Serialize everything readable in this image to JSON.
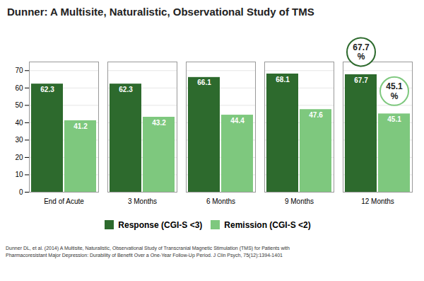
{
  "chart_data": {
    "type": "bar",
    "title": "Dunner: A Multisite, Naturalistic, Observational Study of TMS",
    "categories": [
      "End of Acute",
      "3 Months",
      "6 Months",
      "9 Months",
      "12 Months"
    ],
    "series": [
      {
        "name": "Response (CGI-S <3)",
        "color": "#2d6a2d",
        "values": [
          62.3,
          62.3,
          66.1,
          68.1,
          67.7
        ]
      },
      {
        "name": "Remission (CGI-S <2)",
        "color": "#7ec87e",
        "values": [
          41.2,
          43.2,
          44.4,
          47.6,
          45.1
        ]
      }
    ],
    "ylim": [
      0,
      75
    ],
    "yticks": [
      0,
      10,
      20,
      30,
      40,
      50,
      60,
      70
    ],
    "grid": true,
    "legend": "bottom",
    "data_labels": true,
    "annotations": [
      {
        "text": "67.7\n%",
        "category": "12 Months",
        "series": "Response (CGI-S <3)"
      },
      {
        "text": "45.1\n%",
        "category": "12 Months",
        "series": "Remission (CGI-S <2)"
      }
    ],
    "footnote": [
      "Dunner DL, et al. (2014) A Multisite, Naturalistic, Observational Study of Transcranial Magnetic Stimulation (TMS) for Patients with",
      "Pharmacoresistant Major Depression: Durability of Benefit Over a One-Year Follow-Up Period. J Clin Psych, 75(12):1394-1401"
    ]
  }
}
